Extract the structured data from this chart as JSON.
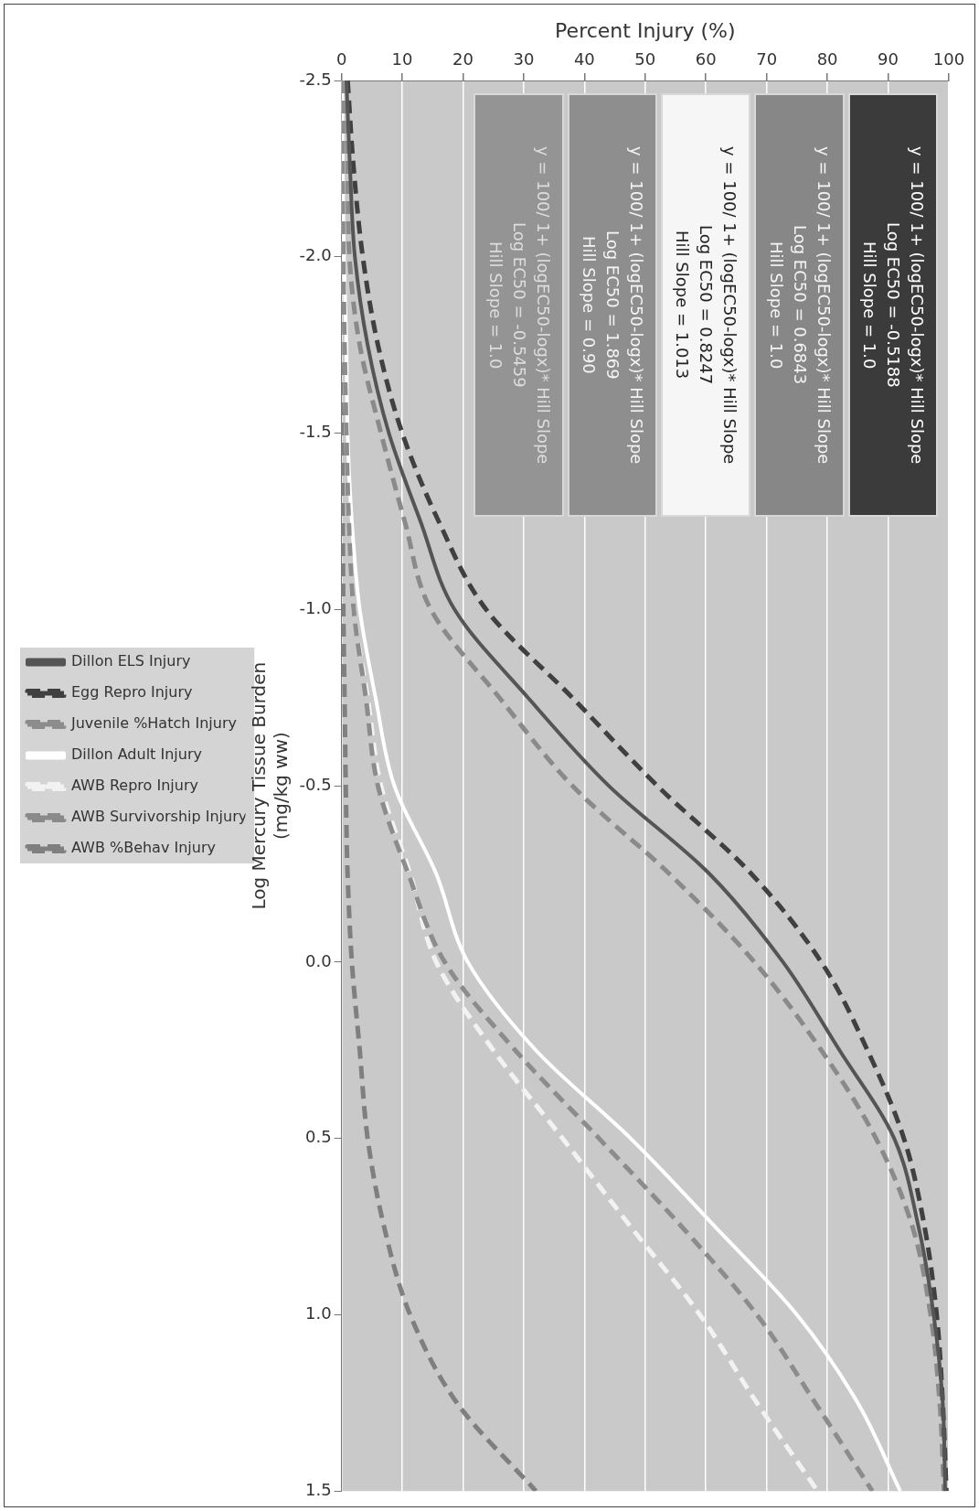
{
  "chart_data": {
    "type": "line",
    "xlabel": "Percent Injury (%)",
    "ylabel": "Log Mercury Tissue Burden\n(mg/kg ww)",
    "series": [
      {
        "name": "Dillon ELS Injury",
        "color": "#555555",
        "line_style": "solid",
        "x": [
          0.8,
          1.4,
          2.2,
          4.3,
          7.8,
          13,
          18.6,
          30.7,
          44,
          60.6,
          72.7,
          82,
          91,
          95,
          97.5,
          99,
          99.4
        ],
        "values": [
          -2.5,
          -2.25,
          -2,
          -1.75,
          -1.5,
          -1.25,
          -1,
          -0.75,
          -0.5,
          -0.25,
          0,
          0.25,
          0.5,
          0.75,
          1,
          1.25,
          1.5
        ]
      },
      {
        "name": "Egg Repro Injury",
        "color": "#404040",
        "line_style": "dashed",
        "x": [
          1,
          2,
          3.5,
          6,
          10,
          16,
          23.8,
          38,
          52,
          67.5,
          79,
          86.6,
          92.6,
          96,
          98,
          99,
          99.6
        ],
        "values": [
          -2.5,
          -2.25,
          -2,
          -1.75,
          -1.5,
          -1.25,
          -1,
          -0.75,
          -0.5,
          -0.25,
          0,
          0.25,
          0.5,
          0.75,
          1,
          1.25,
          1.5
        ]
      },
      {
        "name": "Juvenile %Hatch Injury",
        "color": "#8c8c8c",
        "line_style": "dashed",
        "x": [
          0.1,
          0.2,
          0.3,
          0.5,
          0.8,
          1.2,
          2,
          4,
          6,
          11,
          17,
          28.6,
          42.4,
          56,
          68.4,
          78,
          87.4
        ],
        "values": [
          -2.5,
          -2.25,
          -2,
          -1.75,
          -1.5,
          -1.25,
          -1,
          -0.75,
          -0.5,
          -0.25,
          0,
          0.25,
          0.5,
          0.75,
          1,
          1.25,
          1.5
        ]
      },
      {
        "name": "Dillon Adult Injury",
        "color": "#ffffff",
        "line_style": "solid",
        "x": [
          0.1,
          0.2,
          0.4,
          0.8,
          1,
          1.7,
          3,
          5.6,
          8.7,
          15.6,
          20.8,
          32,
          47.6,
          61.5,
          75,
          85,
          92
        ],
        "values": [
          -2.5,
          -2.25,
          -2,
          -1.75,
          -1.5,
          -1.25,
          -1,
          -0.75,
          -0.5,
          -0.25,
          0,
          0.25,
          0.5,
          0.75,
          1,
          1.25,
          1.5
        ]
      },
      {
        "name": "AWB Repro Injury",
        "color": "#f2f2f2",
        "line_style": "dashed",
        "x": [
          0.1,
          0.2,
          0.3,
          0.5,
          0.8,
          1.2,
          2,
          4.3,
          6.5,
          11.3,
          15.6,
          25,
          36.4,
          47.6,
          59,
          68.4,
          78.4
        ],
        "values": [
          -2.5,
          -2.25,
          -2,
          -1.75,
          -1.5,
          -1.25,
          -1,
          -0.75,
          -0.5,
          -0.25,
          0,
          0.25,
          0.5,
          0.75,
          1,
          1.25,
          1.5
        ]
      },
      {
        "name": "AWB Survivorship Injury",
        "color": "#8a8a8a",
        "line_style": "dashed",
        "x": [
          0.6,
          1,
          1.3,
          3,
          6.5,
          10.4,
          14.7,
          26,
          38,
          54,
          68,
          79,
          88,
          94,
          97,
          98.5,
          99.2
        ],
        "values": [
          -2.5,
          -2.25,
          -2,
          -1.75,
          -1.5,
          -1.25,
          -1,
          -0.75,
          -0.5,
          -0.25,
          0,
          0.25,
          0.5,
          0.75,
          1,
          1.25,
          1.5
        ]
      },
      {
        "name": "AWB %Behav Injury",
        "color": "#7f7f7f",
        "line_style": "dashed",
        "x": [
          0.1,
          0.1,
          0.1,
          0.1,
          0.1,
          0.2,
          0.3,
          0.5,
          0.7,
          1,
          1.7,
          3,
          4.3,
          7,
          11.3,
          19,
          32
        ],
        "values": [
          -2.5,
          -2.25,
          -2,
          -1.75,
          -1.5,
          -1.25,
          -1,
          -0.75,
          -0.5,
          -0.25,
          0,
          0.25,
          0.5,
          0.75,
          1,
          1.25,
          1.5
        ]
      }
    ],
    "xlim": [
      0,
      100
    ],
    "xticks": [
      0,
      10,
      20,
      30,
      40,
      50,
      60,
      70,
      80,
      90,
      100
    ],
    "ylim": [
      1.5,
      -2.5
    ],
    "yticks": [
      {
        "value": -2.5,
        "label": "-2.5"
      },
      {
        "value": -2,
        "label": "-2.0"
      },
      {
        "value": -1.5,
        "label": "-1.5"
      },
      {
        "value": -1,
        "label": "-1.0"
      },
      {
        "value": -0.5,
        "label": "-0.5"
      },
      {
        "value": 0,
        "label": "0.0"
      },
      {
        "value": 0.5,
        "label": "0.5"
      },
      {
        "value": 1,
        "label": "1.0"
      },
      {
        "value": 1.5,
        "label": "1.5"
      }
    ],
    "grid": "x",
    "legend": "left",
    "marker": "none",
    "annotations": [
      "y = 100/ 1+ (logEC50-logx)* Hill Slope\nLog EC50 = -0.5188\nHill Slope = 1.0",
      "y = 100/ 1+ (logEC50-logx)* Hill Slope\nLog EC50 = 0.6843\nHill Slope = 1.0",
      "y = 100/ 1+ (logEC50-logx)* Hill Slope\nLog EC50 = 0.8247\nHill Slope = 1.013",
      "y = 100/ 1+ (logEC50-logx)* Hill Slope\nLog EC50 = 1.869\nHill Slope = 0.90",
      "y = 100/ 1+ (logEC50-logx)* Hill Slope\nLog EC50 = -0.5459\nHill Slope = 1.0"
    ]
  }
}
